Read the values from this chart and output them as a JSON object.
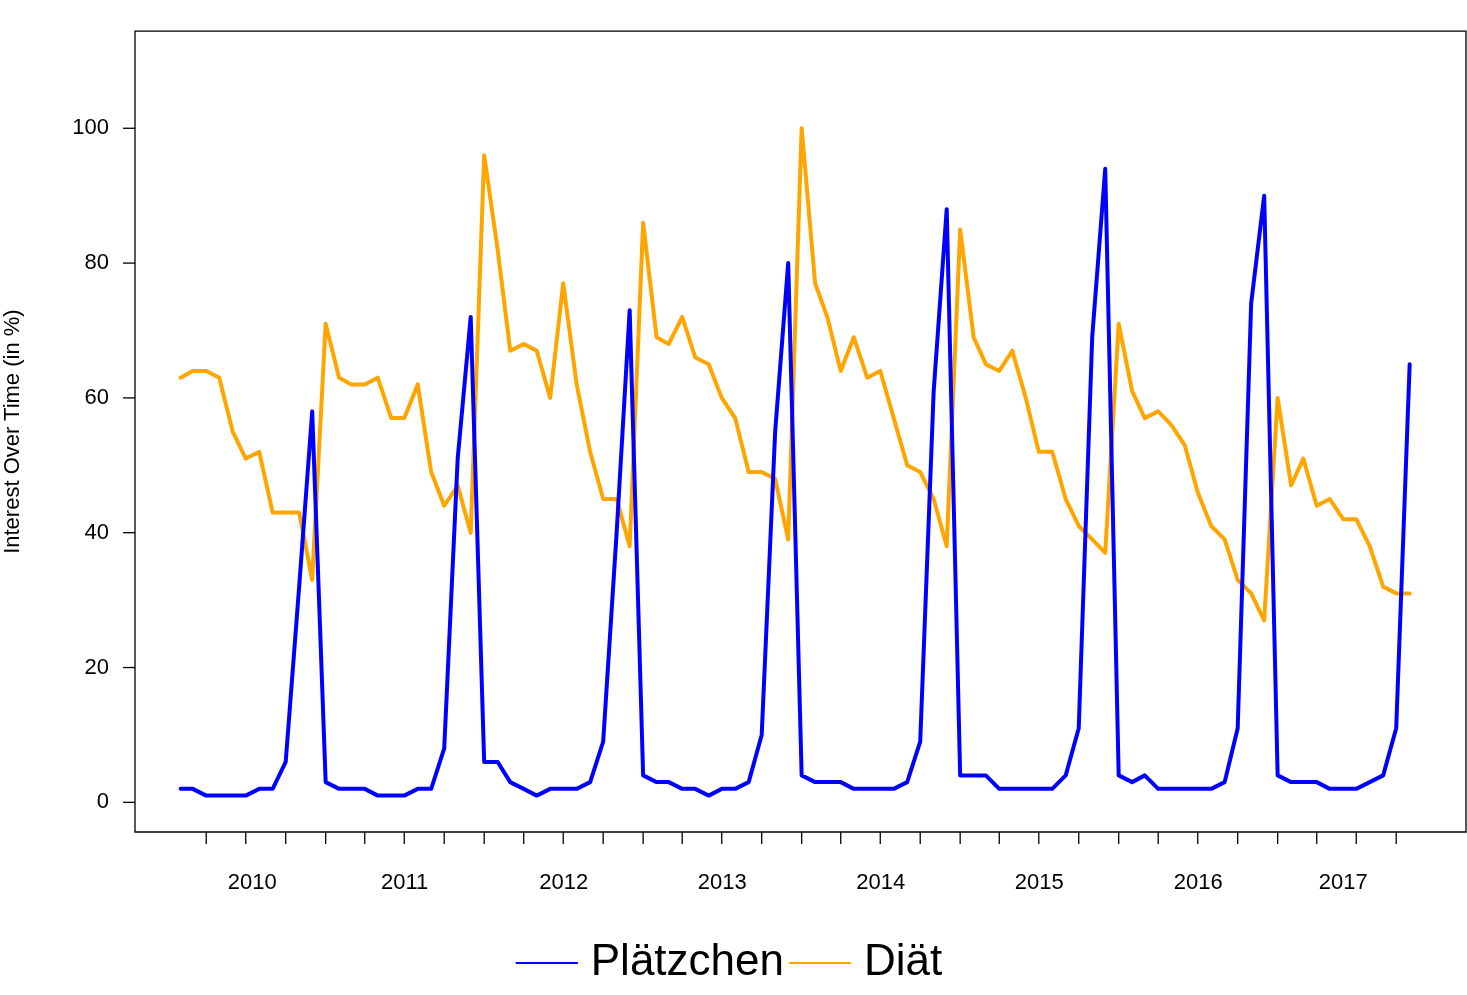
{
  "chart_data": {
    "type": "line",
    "ylabel": "Interest Over Time (in %)",
    "x": [
      "2010-02",
      "2010-03",
      "2010-04",
      "2010-05",
      "2010-06",
      "2010-07",
      "2010-08",
      "2010-09",
      "2010-10",
      "2010-11",
      "2010-12",
      "2011-01",
      "2011-02",
      "2011-03",
      "2011-04",
      "2011-05",
      "2011-06",
      "2011-07",
      "2011-08",
      "2011-09",
      "2011-10",
      "2011-11",
      "2011-12",
      "2012-01",
      "2012-02",
      "2012-03",
      "2012-04",
      "2012-05",
      "2012-06",
      "2012-07",
      "2012-08",
      "2012-09",
      "2012-10",
      "2012-11",
      "2012-12",
      "2013-01",
      "2013-02",
      "2013-03",
      "2013-04",
      "2013-05",
      "2013-06",
      "2013-07",
      "2013-08",
      "2013-09",
      "2013-10",
      "2013-11",
      "2013-12",
      "2014-01",
      "2014-02",
      "2014-03",
      "2014-04",
      "2014-05",
      "2014-06",
      "2014-07",
      "2014-08",
      "2014-09",
      "2014-10",
      "2014-11",
      "2014-12",
      "2015-01",
      "2015-02",
      "2015-03",
      "2015-04",
      "2015-05",
      "2015-06",
      "2015-07",
      "2015-08",
      "2015-09",
      "2015-10",
      "2015-11",
      "2015-12",
      "2016-01",
      "2016-02",
      "2016-03",
      "2016-04",
      "2016-05",
      "2016-06",
      "2016-07",
      "2016-08",
      "2016-09",
      "2016-10",
      "2016-11",
      "2016-12",
      "2017-01",
      "2017-02",
      "2017-03",
      "2017-04",
      "2017-05",
      "2017-06",
      "2017-07",
      "2017-08",
      "2017-09",
      "2017-10",
      "2017-11"
    ],
    "series": [
      {
        "name": "Plätzchen",
        "color": "#0000ff",
        "values": [
          2,
          2,
          1,
          1,
          1,
          1,
          2,
          2,
          6,
          32,
          58,
          3,
          2,
          2,
          2,
          1,
          1,
          1,
          2,
          2,
          8,
          51,
          72,
          6,
          6,
          3,
          2,
          1,
          2,
          2,
          2,
          3,
          9,
          40,
          73,
          4,
          3,
          3,
          2,
          2,
          1,
          2,
          2,
          3,
          10,
          55,
          80,
          4,
          3,
          3,
          3,
          2,
          2,
          2,
          2,
          3,
          9,
          61,
          88,
          4,
          4,
          4,
          2,
          2,
          2,
          2,
          2,
          4,
          11,
          69,
          94,
          4,
          3,
          4,
          2,
          2,
          2,
          2,
          2,
          3,
          11,
          74,
          90,
          4,
          3,
          3,
          3,
          2,
          2,
          2,
          3,
          4,
          11,
          65
        ]
      },
      {
        "name": "Diät",
        "color": "#ffa500",
        "values": [
          63,
          64,
          64,
          63,
          55,
          51,
          52,
          43,
          43,
          43,
          33,
          71,
          63,
          62,
          62,
          63,
          57,
          57,
          62,
          49,
          44,
          47,
          40,
          96,
          82,
          67,
          68,
          67,
          60,
          77,
          62,
          52,
          45,
          45,
          38,
          86,
          69,
          68,
          72,
          66,
          65,
          60,
          57,
          49,
          49,
          48,
          39,
          100,
          77,
          72,
          64,
          69,
          63,
          64,
          57,
          50,
          49,
          45,
          38,
          85,
          69,
          65,
          64,
          67,
          60,
          52,
          52,
          45,
          41,
          39,
          37,
          71,
          61,
          57,
          58,
          56,
          53,
          46,
          41,
          39,
          33,
          31,
          27,
          60,
          47,
          51,
          44,
          45,
          42,
          42,
          38,
          32,
          31,
          31
        ]
      }
    ],
    "xlim": [
      "2009-10-19",
      "2018-03-13"
    ],
    "xticks": [
      {
        "value": "2010-04",
        "label": null
      },
      {
        "value": "2010-07",
        "label": null
      },
      {
        "value": "2010-07-16",
        "label": "2010"
      },
      {
        "value": "2010-10",
        "label": null
      },
      {
        "value": "2011-01",
        "label": null
      },
      {
        "value": "2011-04",
        "label": null
      },
      {
        "value": "2011-07",
        "label": null
      },
      {
        "value": "2011-07-02",
        "label": "2011"
      },
      {
        "value": "2011-10",
        "label": null
      },
      {
        "value": "2012-01",
        "label": null
      },
      {
        "value": "2012-04",
        "label": null
      },
      {
        "value": "2012-07",
        "label": null
      },
      {
        "value": "2012-07-02",
        "label": "2012"
      },
      {
        "value": "2012-10",
        "label": null
      },
      {
        "value": "2013-01",
        "label": null
      },
      {
        "value": "2013-04",
        "label": null
      },
      {
        "value": "2013-07",
        "label": null
      },
      {
        "value": "2013-07-02",
        "label": "2013"
      },
      {
        "value": "2013-10",
        "label": null
      },
      {
        "value": "2014-01",
        "label": null
      },
      {
        "value": "2014-04",
        "label": null
      },
      {
        "value": "2014-07",
        "label": null
      },
      {
        "value": "2014-07-02",
        "label": "2014"
      },
      {
        "value": "2014-10",
        "label": null
      },
      {
        "value": "2015-01",
        "label": null
      },
      {
        "value": "2015-04",
        "label": null
      },
      {
        "value": "2015-07",
        "label": null
      },
      {
        "value": "2015-07-02",
        "label": "2015"
      },
      {
        "value": "2015-10",
        "label": null
      },
      {
        "value": "2016-01",
        "label": null
      },
      {
        "value": "2016-04",
        "label": null
      },
      {
        "value": "2016-07",
        "label": null
      },
      {
        "value": "2016-07-02",
        "label": "2016"
      },
      {
        "value": "2016-10",
        "label": null
      },
      {
        "value": "2017-01",
        "label": null
      },
      {
        "value": "2017-04",
        "label": null
      },
      {
        "value": "2017-06-01",
        "label": "2017"
      },
      {
        "value": "2017-07",
        "label": null
      },
      {
        "value": "2017-10",
        "label": null
      }
    ],
    "ylim": [
      -4.4,
      114.4
    ],
    "yticks": [
      0,
      20,
      40,
      60,
      80,
      100
    ],
    "legend": "bottom",
    "marker": "none",
    "line_style": "solid"
  }
}
